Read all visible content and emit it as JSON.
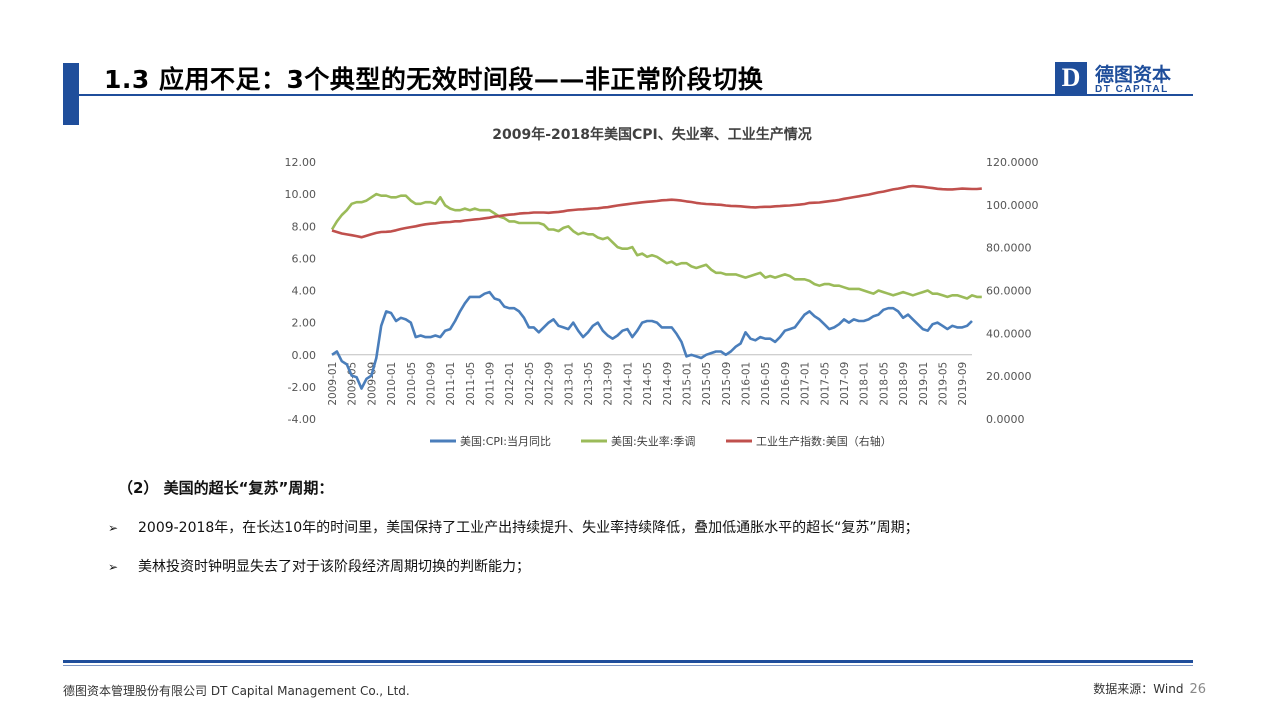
{
  "slide": {
    "title": "1.3 应用不足：3个典型的无效时间段——非正常阶段切换",
    "subheading": "（2） 美国的超长“复苏”周期：",
    "bullets": [
      "2009-2018年，在长达10年的时间里，美国保持了工业产出持续提升、失业率持续降低，叠加低通胀水平的超长“复苏”周期；",
      "美林投资时钟明显失去了对于该阶段经济周期切换的判断能力；"
    ],
    "bullet_marker": "➢",
    "footer_left": "德图资本管理股份有限公司  DT Capital  Management  Co., Ltd.",
    "footer_source": "数据来源：Wind",
    "page_number": "26"
  },
  "logo": {
    "mark": "D",
    "cn": "德图资本",
    "en": "DT CAPITAL",
    "color": "#1f4e9b"
  },
  "colors": {
    "accent": "#1f4e9b",
    "cpi": "#4a7ebb",
    "unemployment": "#9bbb59",
    "industrial": "#c0504d"
  },
  "chart_data": {
    "type": "line",
    "title": "2009年-2018年美国CPI、失业率、工业生产情况",
    "x_tick_labels": [
      "2009-01",
      "2009-05",
      "2009-09",
      "2010-01",
      "2010-05",
      "2010-09",
      "2011-01",
      "2011-05",
      "2011-09",
      "2012-01",
      "2012-05",
      "2012-09",
      "2013-01",
      "2013-05",
      "2013-09",
      "2014-01",
      "2014-05",
      "2014-09",
      "2015-01",
      "2015-05",
      "2015-09",
      "2016-01",
      "2016-05",
      "2016-09",
      "2017-01",
      "2017-05",
      "2017-09",
      "2018-01",
      "2018-05",
      "2018-09",
      "2019-01",
      "2019-05",
      "2019-09"
    ],
    "y_left": {
      "min": -4,
      "max": 12,
      "ticks": [
        "-4.00",
        "-2.00",
        "0.00",
        "2.00",
        "4.00",
        "6.00",
        "8.00",
        "10.00",
        "12.00"
      ]
    },
    "y_right": {
      "min": 0,
      "max": 120,
      "ticks": [
        "0.0000",
        "20.0000",
        "40.0000",
        "60.0000",
        "80.0000",
        "100.0000",
        "120.0000"
      ]
    },
    "legend_position": "bottom",
    "grid": false,
    "series": [
      {
        "name": "美国:CPI:当月同比",
        "axis": "left",
        "color": "#4a7ebb",
        "values": [
          0.0,
          0.2,
          -0.4,
          -0.6,
          -1.3,
          -1.4,
          -2.1,
          -1.5,
          -1.3,
          -0.2,
          1.8,
          2.7,
          2.6,
          2.1,
          2.3,
          2.2,
          2.0,
          1.1,
          1.2,
          1.1,
          1.1,
          1.2,
          1.1,
          1.5,
          1.6,
          2.1,
          2.7,
          3.2,
          3.6,
          3.6,
          3.6,
          3.8,
          3.9,
          3.5,
          3.4,
          3.0,
          2.9,
          2.9,
          2.7,
          2.3,
          1.7,
          1.7,
          1.4,
          1.7,
          2.0,
          2.2,
          1.8,
          1.7,
          1.6,
          2.0,
          1.5,
          1.1,
          1.4,
          1.8,
          2.0,
          1.5,
          1.2,
          1.0,
          1.2,
          1.5,
          1.6,
          1.1,
          1.5,
          2.0,
          2.1,
          2.1,
          2.0,
          1.7,
          1.7,
          1.7,
          1.3,
          0.8,
          -0.1,
          0.0,
          -0.1,
          -0.2,
          0.0,
          0.1,
          0.2,
          0.2,
          0.0,
          0.2,
          0.5,
          0.7,
          1.4,
          1.0,
          0.9,
          1.1,
          1.0,
          1.0,
          0.8,
          1.1,
          1.5,
          1.6,
          1.7,
          2.1,
          2.5,
          2.7,
          2.4,
          2.2,
          1.9,
          1.6,
          1.7,
          1.9,
          2.2,
          2.0,
          2.2,
          2.1,
          2.1,
          2.2,
          2.4,
          2.5,
          2.8,
          2.9,
          2.9,
          2.7,
          2.3,
          2.5,
          2.2,
          1.9,
          1.6,
          1.5,
          1.9,
          2.0,
          1.8,
          1.6,
          1.8,
          1.7,
          1.7,
          1.8,
          2.1
        ]
      },
      {
        "name": "美国:失业率:季调",
        "axis": "left",
        "color": "#9bbb59",
        "values": [
          7.8,
          8.3,
          8.7,
          9.0,
          9.4,
          9.5,
          9.5,
          9.6,
          9.8,
          10.0,
          9.9,
          9.9,
          9.8,
          9.8,
          9.9,
          9.9,
          9.6,
          9.4,
          9.4,
          9.5,
          9.5,
          9.4,
          9.8,
          9.3,
          9.1,
          9.0,
          9.0,
          9.1,
          9.0,
          9.1,
          9.0,
          9.0,
          9.0,
          8.8,
          8.6,
          8.5,
          8.3,
          8.3,
          8.2,
          8.2,
          8.2,
          8.2,
          8.2,
          8.1,
          7.8,
          7.8,
          7.7,
          7.9,
          8.0,
          7.7,
          7.5,
          7.6,
          7.5,
          7.5,
          7.3,
          7.2,
          7.3,
          7.0,
          6.7,
          6.6,
          6.6,
          6.7,
          6.2,
          6.3,
          6.1,
          6.2,
          6.1,
          5.9,
          5.7,
          5.8,
          5.6,
          5.7,
          5.7,
          5.5,
          5.4,
          5.5,
          5.6,
          5.3,
          5.1,
          5.1,
          5.0,
          5.0,
          5.0,
          4.9,
          4.8,
          4.9,
          5.0,
          5.1,
          4.8,
          4.9,
          4.8,
          4.9,
          5.0,
          4.9,
          4.7,
          4.7,
          4.7,
          4.6,
          4.4,
          4.3,
          4.4,
          4.4,
          4.3,
          4.3,
          4.2,
          4.1,
          4.1,
          4.1,
          4.0,
          3.9,
          3.8,
          4.0,
          3.9,
          3.8,
          3.7,
          3.8,
          3.9,
          3.8,
          3.7,
          3.8,
          3.9,
          4.0,
          3.8,
          3.8,
          3.7,
          3.6,
          3.7,
          3.7,
          3.6,
          3.5,
          3.7,
          3.6,
          3.6
        ]
      },
      {
        "name": "工业生产指数:美国（右轴）",
        "axis": "right",
        "color": "#c0504d",
        "values": [
          88.0,
          87.3,
          86.6,
          86.2,
          85.8,
          85.4,
          84.9,
          85.6,
          86.3,
          86.9,
          87.3,
          87.4,
          87.6,
          88.1,
          88.7,
          89.2,
          89.6,
          90.0,
          90.5,
          90.9,
          91.2,
          91.4,
          91.7,
          91.9,
          92.0,
          92.3,
          92.3,
          92.7,
          92.9,
          93.2,
          93.4,
          93.7,
          94.0,
          94.5,
          94.8,
          95.1,
          95.4,
          95.6,
          95.9,
          96.1,
          96.2,
          96.4,
          96.4,
          96.4,
          96.3,
          96.5,
          96.7,
          97.0,
          97.4,
          97.6,
          97.8,
          97.9,
          98.1,
          98.3,
          98.4,
          98.7,
          98.9,
          99.3,
          99.7,
          100.0,
          100.3,
          100.6,
          100.9,
          101.2,
          101.4,
          101.6,
          101.8,
          102.1,
          102.2,
          102.4,
          102.2,
          102.0,
          101.6,
          101.3,
          100.9,
          100.6,
          100.4,
          100.3,
          100.1,
          100.0,
          99.7,
          99.5,
          99.4,
          99.3,
          99.1,
          98.9,
          98.8,
          99.0,
          99.1,
          99.1,
          99.3,
          99.4,
          99.6,
          99.7,
          99.9,
          100.1,
          100.4,
          100.9,
          101.0,
          101.1,
          101.4,
          101.7,
          102.0,
          102.3,
          102.8,
          103.2,
          103.6,
          104.0,
          104.4,
          104.8,
          105.3,
          105.8,
          106.2,
          106.7,
          107.2,
          107.6,
          108.0,
          108.5,
          108.8,
          108.6,
          108.4,
          108.1,
          107.8,
          107.5,
          107.3,
          107.2,
          107.2,
          107.4,
          107.6,
          107.5,
          107.4,
          107.4,
          107.6
        ]
      }
    ]
  }
}
